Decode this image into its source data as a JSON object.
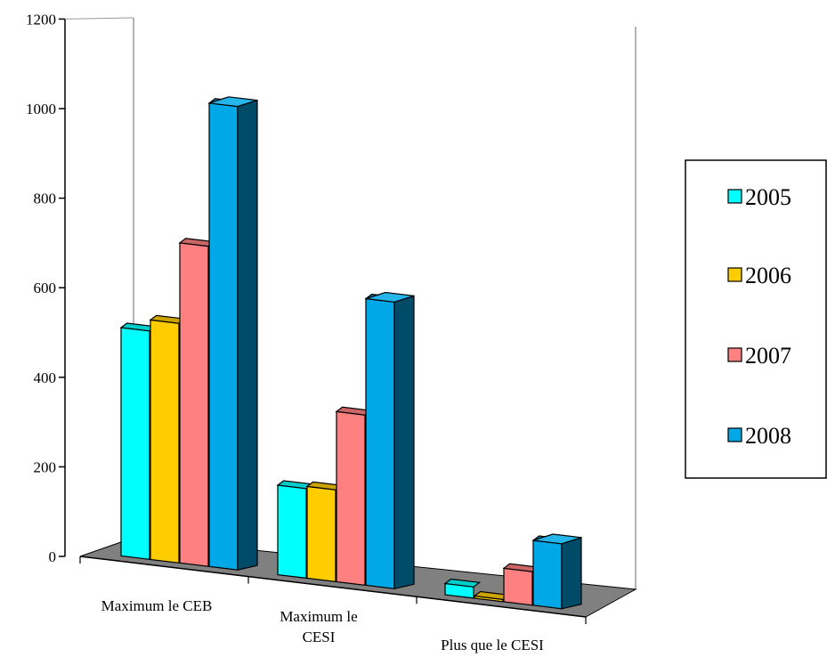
{
  "chart_data": {
    "type": "bar",
    "title": "",
    "xlabel": "",
    "ylabel": "",
    "ylim": [
      0,
      1200
    ],
    "yticks": [
      0,
      200,
      400,
      600,
      800,
      1000,
      1200
    ],
    "categories": [
      [
        "Maximum le CEB"
      ],
      [
        "Maximum le",
        "CESI"
      ],
      [
        "Plus que le CESI"
      ]
    ],
    "series": [
      {
        "name": "2005",
        "color": "#00FFFF",
        "values": [
          510,
          200,
          25
        ]
      },
      {
        "name": "2006",
        "color": "#FFCC00",
        "values": [
          535,
          205,
          5
        ]
      },
      {
        "name": "2007",
        "color": "#FF8080",
        "values": [
          715,
          380,
          75
        ]
      },
      {
        "name": "2008",
        "color": "#00A8E8",
        "values": [
          1035,
          640,
          145
        ]
      }
    ],
    "legend_position": "right",
    "three_d": true,
    "grid": false
  }
}
